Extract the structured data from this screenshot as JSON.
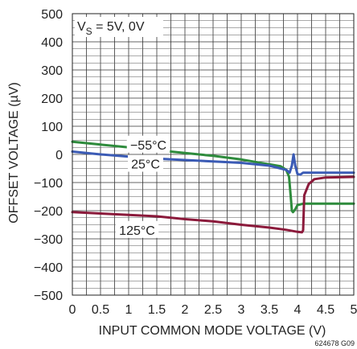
{
  "chart_data": {
    "type": "line",
    "title": "",
    "xlabel": "INPUT COMMON MODE VOLTAGE (V)",
    "ylabel": "OFFSET VOLTAGE (µV)",
    "xlim": [
      0,
      5
    ],
    "ylim": [
      -500,
      500
    ],
    "grid": true,
    "x_ticks": [
      "0",
      "0.5",
      "1",
      "1.5",
      "2",
      "2.5",
      "3",
      "3.5",
      "4",
      "4.5",
      "5"
    ],
    "y_ticks": [
      "500",
      "400",
      "300",
      "200",
      "100",
      "0",
      "−100",
      "−200",
      "−300",
      "−400",
      "−500"
    ],
    "condition_label": "V",
    "condition_sub": "S",
    "condition_rest": " = 5V, 0V",
    "figure_code": "624678 G09",
    "series": [
      {
        "name": "−55°C",
        "color": "#2e8b3c",
        "points": [
          [
            0,
            45
          ],
          [
            0.5,
            35
          ],
          [
            1,
            25
          ],
          [
            1.5,
            15
          ],
          [
            2,
            5
          ],
          [
            2.5,
            -5
          ],
          [
            3,
            -18
          ],
          [
            3.5,
            -35
          ],
          [
            3.7,
            -42
          ],
          [
            3.8,
            -55
          ],
          [
            3.85,
            -80
          ],
          [
            3.88,
            -150
          ],
          [
            3.9,
            -200
          ],
          [
            3.92,
            -205
          ],
          [
            3.96,
            -195
          ],
          [
            4.0,
            -180
          ],
          [
            4.1,
            -175
          ],
          [
            4.5,
            -175
          ],
          [
            5,
            -175
          ]
        ]
      },
      {
        "name": "25°C",
        "color": "#3b5bb5",
        "points": [
          [
            0,
            10
          ],
          [
            0.5,
            0
          ],
          [
            1,
            -8
          ],
          [
            1.5,
            -15
          ],
          [
            2,
            -20
          ],
          [
            2.5,
            -25
          ],
          [
            3,
            -30
          ],
          [
            3.5,
            -40
          ],
          [
            3.8,
            -55
          ],
          [
            3.86,
            -65
          ],
          [
            3.9,
            -40
          ],
          [
            3.93,
            0
          ],
          [
            3.96,
            -40
          ],
          [
            4.0,
            -70
          ],
          [
            4.05,
            -72
          ],
          [
            4.1,
            -65
          ],
          [
            4.3,
            -65
          ],
          [
            4.5,
            -65
          ],
          [
            5,
            -65
          ]
        ]
      },
      {
        "name": "125°C",
        "color": "#8b1a3b",
        "points": [
          [
            0,
            -205
          ],
          [
            0.5,
            -210
          ],
          [
            1,
            -215
          ],
          [
            1.5,
            -220
          ],
          [
            2,
            -230
          ],
          [
            2.5,
            -238
          ],
          [
            3,
            -250
          ],
          [
            3.5,
            -260
          ],
          [
            3.8,
            -268
          ],
          [
            4.0,
            -275
          ],
          [
            4.08,
            -277
          ],
          [
            4.1,
            -270
          ],
          [
            4.12,
            -145
          ],
          [
            4.2,
            -105
          ],
          [
            4.3,
            -88
          ],
          [
            4.5,
            -82
          ],
          [
            5,
            -80
          ]
        ]
      }
    ],
    "annotations": [
      {
        "text": "−55°C",
        "x": 1.35,
        "y": 35
      },
      {
        "text": "25°C",
        "x": 1.3,
        "y": -33
      },
      {
        "text": "125°C",
        "x": 1.15,
        "y": -268
      }
    ]
  }
}
